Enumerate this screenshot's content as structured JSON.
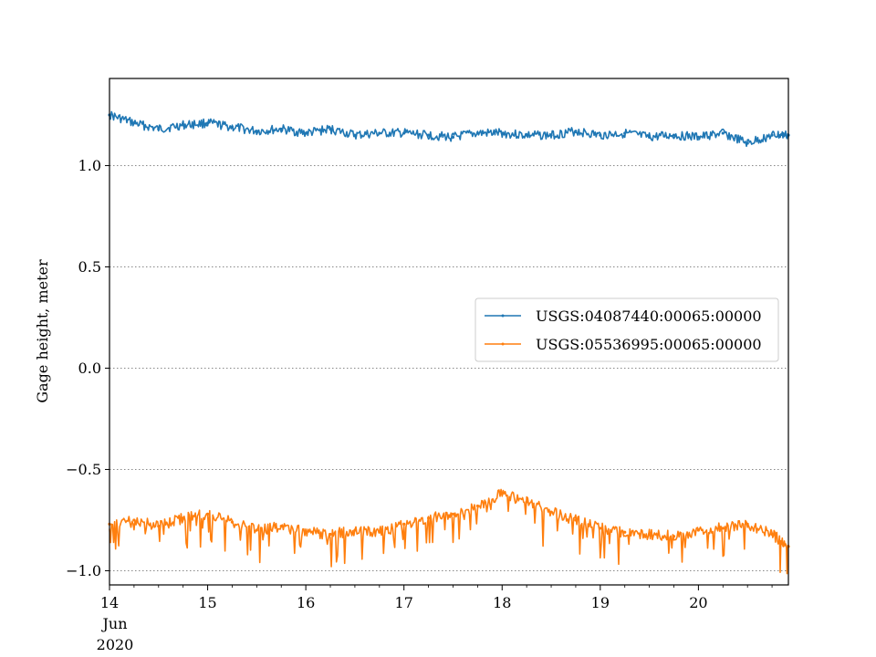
{
  "chart_data": {
    "type": "line",
    "title": "",
    "xlabel": "",
    "ylabel": "Gage height, meter",
    "x_axis": {
      "type": "date",
      "range": [
        "2020-06-14T00:00",
        "2020-06-20T22:00"
      ],
      "tick_labels": [
        "14",
        "15",
        "16",
        "17",
        "18",
        "19",
        "20"
      ],
      "tick_dates": [
        "2020-06-14",
        "2020-06-15",
        "2020-06-16",
        "2020-06-17",
        "2020-06-18",
        "2020-06-19",
        "2020-06-20"
      ],
      "secondary_labels": [
        "Jun",
        "2020"
      ]
    },
    "y_axis": {
      "range": [
        -1.07,
        1.43
      ],
      "ticks": [
        -1.0,
        -0.5,
        0.0,
        0.5,
        1.0
      ],
      "tick_labels": [
        "−1.0",
        "−0.5",
        "0.0",
        "0.5",
        "1.0"
      ]
    },
    "grid": "y-dotted",
    "legend_position": "center-right",
    "series": [
      {
        "name": "USGS:04087440:00065:00000",
        "color": "#1f77b4",
        "x": [
          "2020-06-14T00:00",
          "2020-06-14T06:00",
          "2020-06-14T12:00",
          "2020-06-14T18:00",
          "2020-06-15T00:00",
          "2020-06-15T06:00",
          "2020-06-15T12:00",
          "2020-06-15T18:00",
          "2020-06-16T00:00",
          "2020-06-16T06:00",
          "2020-06-16T12:00",
          "2020-06-16T18:00",
          "2020-06-17T00:00",
          "2020-06-17T06:00",
          "2020-06-17T12:00",
          "2020-06-17T18:00",
          "2020-06-18T00:00",
          "2020-06-18T06:00",
          "2020-06-18T12:00",
          "2020-06-18T18:00",
          "2020-06-19T00:00",
          "2020-06-19T06:00",
          "2020-06-19T12:00",
          "2020-06-19T18:00",
          "2020-06-20T00:00",
          "2020-06-20T06:00",
          "2020-06-20T12:00",
          "2020-06-20T18:00",
          "2020-06-20T22:00"
        ],
        "y": [
          1.25,
          1.21,
          1.18,
          1.2,
          1.21,
          1.19,
          1.17,
          1.18,
          1.16,
          1.18,
          1.15,
          1.16,
          1.16,
          1.15,
          1.14,
          1.16,
          1.16,
          1.15,
          1.15,
          1.17,
          1.15,
          1.16,
          1.14,
          1.15,
          1.14,
          1.16,
          1.11,
          1.15,
          1.15
        ]
      },
      {
        "name": "USGS:05536995:00065:00000",
        "color": "#ff7f0e",
        "x": [
          "2020-06-14T00:00",
          "2020-06-14T06:00",
          "2020-06-14T12:00",
          "2020-06-14T18:00",
          "2020-06-15T00:00",
          "2020-06-15T06:00",
          "2020-06-15T12:00",
          "2020-06-15T18:00",
          "2020-06-16T00:00",
          "2020-06-16T06:00",
          "2020-06-16T12:00",
          "2020-06-16T18:00",
          "2020-06-17T00:00",
          "2020-06-17T06:00",
          "2020-06-17T12:00",
          "2020-06-17T18:00",
          "2020-06-18T00:00",
          "2020-06-18T06:00",
          "2020-06-18T12:00",
          "2020-06-18T18:00",
          "2020-06-19T00:00",
          "2020-06-19T06:00",
          "2020-06-19T12:00",
          "2020-06-19T18:00",
          "2020-06-20T00:00",
          "2020-06-20T06:00",
          "2020-06-20T12:00",
          "2020-06-20T18:00",
          "2020-06-20T22:00"
        ],
        "y": [
          -0.77,
          -0.75,
          -0.78,
          -0.74,
          -0.72,
          -0.76,
          -0.8,
          -0.78,
          -0.81,
          -0.82,
          -0.8,
          -0.81,
          -0.77,
          -0.74,
          -0.72,
          -0.68,
          -0.62,
          -0.66,
          -0.71,
          -0.75,
          -0.79,
          -0.81,
          -0.82,
          -0.83,
          -0.8,
          -0.79,
          -0.77,
          -0.82,
          -0.88
        ]
      }
    ],
    "annotations": []
  }
}
